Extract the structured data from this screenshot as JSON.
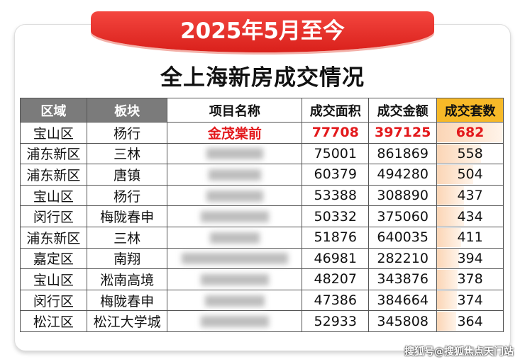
{
  "banner": "2025年5月至今",
  "title": "全上海新房成交情况",
  "columns": [
    "区域",
    "板块",
    "项目名称",
    "成交面积",
    "成交金额",
    "成交套数"
  ],
  "rows": [
    {
      "district": "宝山区",
      "area": "杨行",
      "project": "金茂棠前",
      "sqm": "77708",
      "amount": "397125",
      "units": "682"
    },
    {
      "district": "浦东新区",
      "area": "三林",
      "project": "",
      "sqm": "75001",
      "amount": "861869",
      "units": "558"
    },
    {
      "district": "浦东新区",
      "area": "唐镇",
      "project": "",
      "sqm": "60379",
      "amount": "494280",
      "units": "504"
    },
    {
      "district": "宝山区",
      "area": "杨行",
      "project": "",
      "sqm": "53388",
      "amount": "308890",
      "units": "437"
    },
    {
      "district": "闵行区",
      "area": "梅陇春申",
      "project": "",
      "sqm": "50332",
      "amount": "375060",
      "units": "434"
    },
    {
      "district": "浦东新区",
      "area": "三林",
      "project": "",
      "sqm": "51876",
      "amount": "640035",
      "units": "411"
    },
    {
      "district": "嘉定区",
      "area": "南翔",
      "project": "",
      "sqm": "46981",
      "amount": "282210",
      "units": "394"
    },
    {
      "district": "宝山区",
      "area": "淞南高境",
      "project": "",
      "sqm": "48207",
      "amount": "343876",
      "units": "378"
    },
    {
      "district": "闵行区",
      "area": "梅陇春申",
      "project": "",
      "sqm": "47386",
      "amount": "384664",
      "units": "374"
    },
    {
      "district": "松江区",
      "area": "松江大学城",
      "project": "",
      "sqm": "52933",
      "amount": "345808",
      "units": "364"
    }
  ],
  "colors": {
    "highlight": "#e3191c",
    "banner": "#e02a24",
    "header_gray": "#7b7b7b",
    "header_yellow": "#f7b928"
  },
  "watermark": "搜狐号@搜狐焦点天门站"
}
